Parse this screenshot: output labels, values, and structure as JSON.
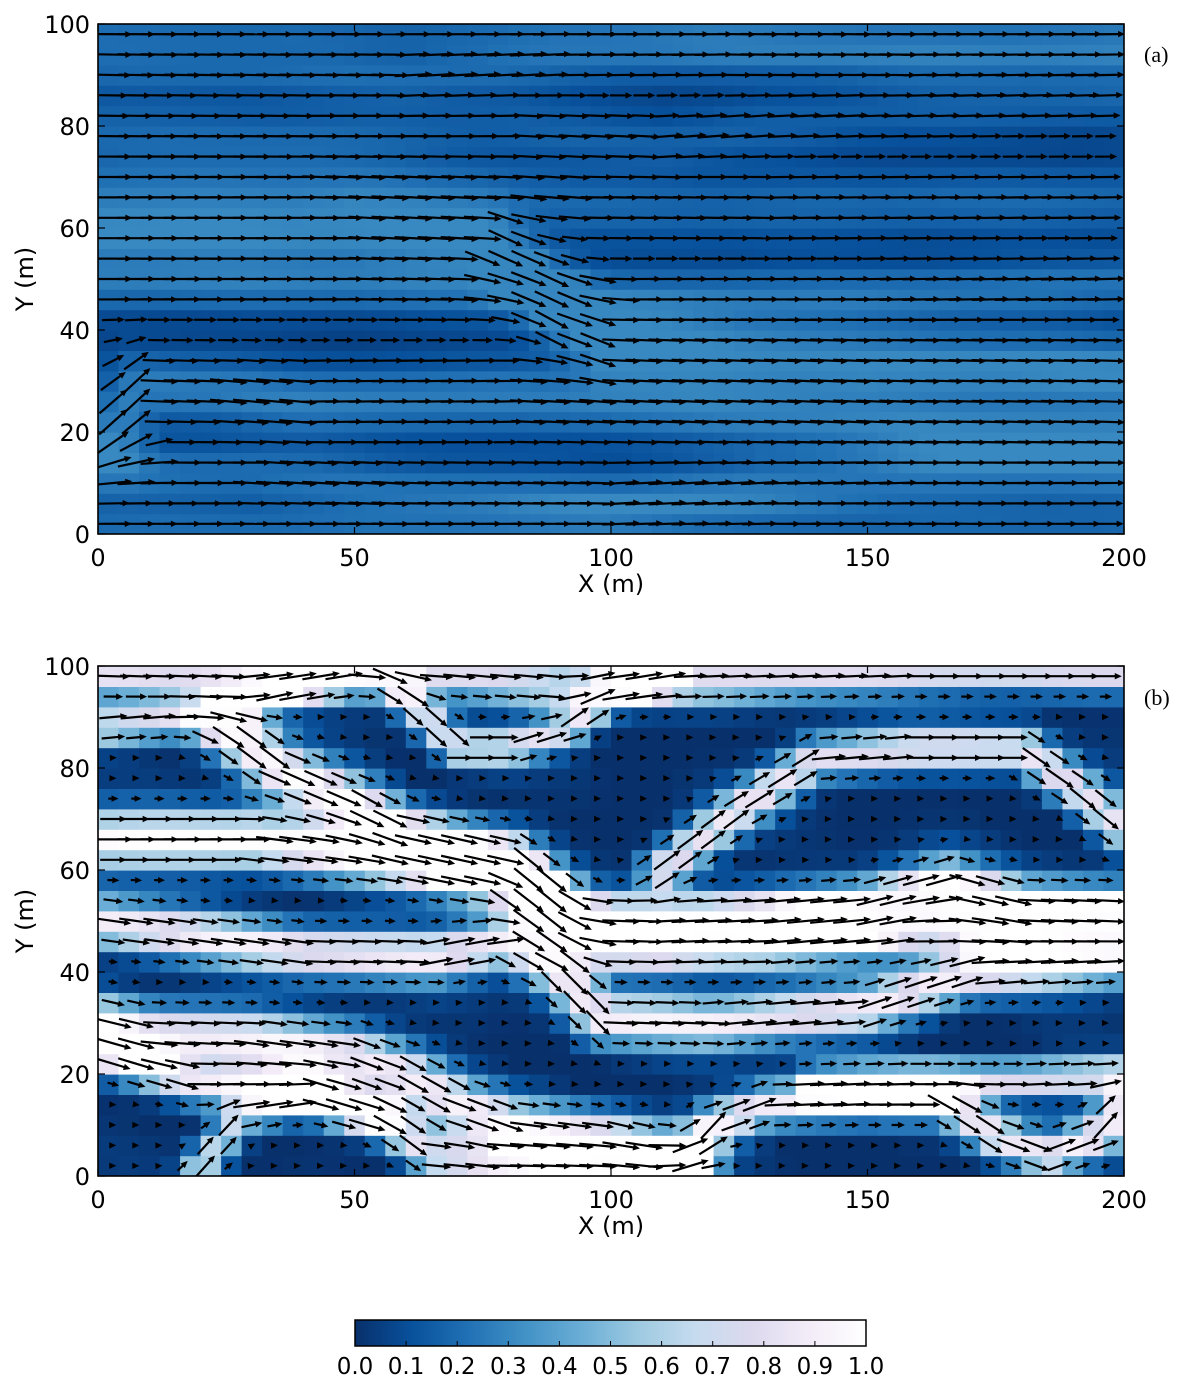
{
  "chart_data": [
    {
      "type": "heatmap",
      "subtype": "quiver",
      "panel_label": "(a)",
      "xlabel": "X (m)",
      "ylabel": "Y (m)",
      "xlim": [
        0,
        200
      ],
      "ylim": [
        0,
        100
      ],
      "xticks": [
        0,
        50,
        100,
        150,
        200
      ],
      "yticks": [
        0,
        20,
        40,
        60,
        80,
        100
      ],
      "colormap_value_range": [
        0.05,
        0.3
      ],
      "arrow_grid": {
        "x_start": 3,
        "x_step": 4.5,
        "y_start": 2,
        "y_step": 4
      },
      "flow_channels": [
        {
          "points": [
            [
              0,
              99
            ],
            [
              60,
              99
            ],
            [
              100,
              98
            ],
            [
              150,
              97
            ],
            [
              200,
              97
            ]
          ],
          "strength": 0.45,
          "width": 3
        },
        {
          "points": [
            [
              0,
              92
            ],
            [
              30,
              91
            ],
            [
              60,
              90
            ],
            [
              90,
              93
            ],
            [
              120,
              94
            ],
            [
              160,
              93
            ],
            [
              200,
              94
            ]
          ],
          "strength": 0.6,
          "width": 4
        },
        {
          "points": [
            [
              0,
              80
            ],
            [
              40,
              79
            ],
            [
              80,
              80
            ],
            [
              110,
              77
            ],
            [
              130,
              80
            ],
            [
              150,
              82
            ],
            [
              200,
              85
            ]
          ],
          "strength": 0.45,
          "width": 4
        },
        {
          "points": [
            [
              0,
              70
            ],
            [
              40,
              70
            ],
            [
              80,
              67
            ],
            [
              95,
              65
            ],
            [
              130,
              64
            ],
            [
              200,
              66
            ]
          ],
          "strength": 0.55,
          "width": 5
        },
        {
          "points": [
            [
              0,
              60
            ],
            [
              50,
              60
            ],
            [
              75,
              58
            ],
            [
              85,
              50
            ],
            [
              92,
              42
            ],
            [
              100,
              37
            ],
            [
              150,
              34
            ],
            [
              200,
              32
            ]
          ],
          "strength": 1.0,
          "width": 5
        },
        {
          "points": [
            [
              0,
              49
            ],
            [
              50,
              49
            ],
            [
              80,
              48
            ],
            [
              100,
              46
            ],
            [
              150,
              47
            ],
            [
              200,
              49
            ]
          ],
          "strength": 0.75,
          "width": 4
        },
        {
          "points": [
            [
              3,
              20
            ],
            [
              8,
              29
            ],
            [
              25,
              28
            ],
            [
              40,
              26
            ],
            [
              80,
              27
            ],
            [
              120,
              24
            ],
            [
              160,
              21
            ],
            [
              200,
              19
            ]
          ],
          "strength": 0.85,
          "width": 5
        },
        {
          "points": [
            [
              0,
              12
            ],
            [
              30,
              12
            ],
            [
              60,
              9
            ],
            [
              100,
              7
            ],
            [
              130,
              10
            ],
            [
              160,
              12
            ],
            [
              200,
              13
            ]
          ],
          "strength": 0.7,
          "width": 4
        },
        {
          "points": [
            [
              0,
              2
            ],
            [
              60,
              2
            ],
            [
              100,
              3
            ],
            [
              130,
              4
            ],
            [
              170,
              3
            ],
            [
              200,
              3
            ]
          ],
          "strength": 0.55,
          "width": 3
        }
      ],
      "background_flow_strength": 0.38
    },
    {
      "type": "heatmap",
      "subtype": "quiver",
      "panel_label": "(b)",
      "xlabel": "X (m)",
      "ylabel": "Y (m)",
      "xlim": [
        0,
        200
      ],
      "ylim": [
        0,
        100
      ],
      "xticks": [
        0,
        50,
        100,
        150,
        200
      ],
      "yticks": [
        0,
        20,
        40,
        60,
        80,
        100
      ],
      "colormap_value_range": [
        0.0,
        1.0
      ],
      "arrow_grid": {
        "x_start": 3,
        "x_step": 4.5,
        "y_start": 2,
        "y_step": 4
      },
      "flow_channels": [
        {
          "points": [
            [
              0,
              98
            ],
            [
              30,
              97
            ],
            [
              55,
              99
            ],
            [
              70,
              98
            ],
            [
              90,
              96
            ],
            [
              120,
              97
            ],
            [
              160,
              99
            ],
            [
              200,
              99
            ]
          ],
          "strength": 0.8,
          "width": 3
        },
        {
          "points": [
            [
              0,
              88
            ],
            [
              20,
              90
            ],
            [
              35,
              95
            ],
            [
              50,
              99
            ]
          ],
          "strength": 0.8,
          "width": 2.5
        },
        {
          "points": [
            [
              55,
              99
            ],
            [
              62,
              92
            ],
            [
              70,
              84
            ],
            [
              80,
              84
            ],
            [
              92,
              88
            ],
            [
              100,
              95
            ],
            [
              110,
              98
            ]
          ],
          "strength": 0.8,
          "width": 2.5
        },
        {
          "points": [
            [
              25,
              88
            ],
            [
              35,
              80
            ],
            [
              50,
              73
            ],
            [
              60,
              67
            ],
            [
              80,
              62
            ],
            [
              88,
              55
            ],
            [
              95,
              49
            ],
            [
              110,
              48
            ],
            [
              130,
              50
            ],
            [
              150,
              52
            ],
            [
              165,
              57
            ],
            [
              180,
              52
            ],
            [
              200,
              51
            ]
          ],
          "strength": 1.0,
          "width": 4
        },
        {
          "points": [
            [
              0,
              66
            ],
            [
              30,
              66
            ],
            [
              60,
              62
            ],
            [
              80,
              58
            ],
            [
              90,
              50
            ],
            [
              100,
              47
            ],
            [
              130,
              47
            ],
            [
              160,
              50
            ],
            [
              200,
              48
            ]
          ],
          "strength": 1.0,
          "width": 4
        },
        {
          "points": [
            [
              110,
              60
            ],
            [
              125,
              72
            ],
            [
              140,
              82
            ],
            [
              160,
              84
            ],
            [
              180,
              84
            ],
            [
              192,
              75
            ],
            [
              200,
              68
            ]
          ],
          "strength": 0.85,
          "width": 3
        },
        {
          "points": [
            [
              0,
              50
            ],
            [
              40,
              44
            ],
            [
              65,
              43
            ],
            [
              80,
              46
            ],
            [
              90,
              40
            ],
            [
              98,
              31
            ],
            [
              120,
              30
            ],
            [
              150,
              33
            ],
            [
              170,
              40
            ],
            [
              200,
              43
            ]
          ],
          "strength": 0.9,
          "width": 3.5
        },
        {
          "points": [
            [
              2,
              30
            ],
            [
              10,
              28
            ],
            [
              30,
              27
            ],
            [
              50,
              24
            ],
            [
              60,
              20
            ],
            [
              70,
              14
            ],
            [
              80,
              10
            ],
            [
              100,
              7
            ],
            [
              115,
              3
            ]
          ],
          "strength": 0.9,
          "width": 4
        },
        {
          "points": [
            [
              2,
              24
            ],
            [
              20,
              18
            ],
            [
              40,
              18
            ],
            [
              55,
              12
            ],
            [
              65,
              4
            ],
            [
              75,
              3
            ],
            [
              110,
              3
            ]
          ],
          "strength": 0.85,
          "width": 3
        },
        {
          "points": [
            [
              20,
              2
            ],
            [
              28,
              12
            ],
            [
              40,
              15
            ],
            [
              55,
              12
            ]
          ],
          "strength": 0.7,
          "width": 2.5
        },
        {
          "points": [
            [
              115,
              3
            ],
            [
              120,
              10
            ],
            [
              130,
              14
            ],
            [
              150,
              15
            ],
            [
              165,
              15
            ],
            [
              175,
              8
            ],
            [
              185,
              4
            ],
            [
              195,
              8
            ],
            [
              200,
              14
            ]
          ],
          "strength": 0.9,
          "width": 3
        },
        {
          "points": [
            [
              140,
              18
            ],
            [
              160,
              19
            ],
            [
              180,
              19
            ],
            [
              200,
              20
            ]
          ],
          "strength": 0.85,
          "width": 2.5
        }
      ],
      "background_flow_strength": 0.05
    }
  ],
  "colorbar": {
    "colors": [
      "#08306b",
      "#08519c",
      "#2171b5",
      "#4292c6",
      "#6baed6",
      "#9ecae1",
      "#c6dbef",
      "#ddd9ee",
      "#f3ecf8",
      "#ffffff"
    ],
    "ticks": [
      "0.0",
      "0.1",
      "0.2",
      "0.3",
      "0.4",
      "0.5",
      "0.6",
      "0.7",
      "0.8",
      "0.9",
      "1.0"
    ]
  },
  "colors": {
    "arrow": "#000000",
    "axes": "#000000"
  }
}
